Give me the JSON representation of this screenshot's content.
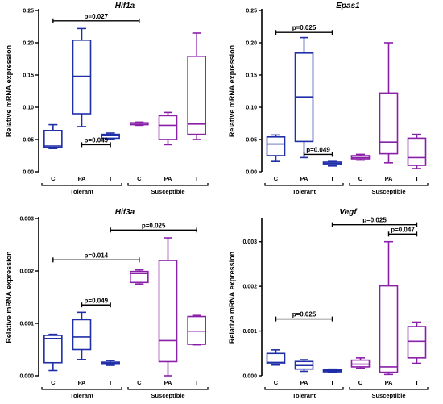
{
  "colors": {
    "tolerant": "#1f2fa8",
    "susceptible": "#8a1fa8",
    "axis": "#000000"
  },
  "chart_data": [
    {
      "type": "box",
      "title": "Hif1a",
      "ylabel": "Relative mRNA expression",
      "ylim": [
        0,
        0.25
      ],
      "yticks": [
        "0.00",
        "0.05",
        "0.10",
        "0.15",
        "0.20",
        "0.25"
      ],
      "ytick_values": [
        0,
        0.05,
        0.1,
        0.15,
        0.2,
        0.25
      ],
      "categories": [
        "C",
        "PA",
        "T",
        "C",
        "PA",
        "T"
      ],
      "groups": [
        "Tolerant",
        "Susceptible"
      ],
      "boxes": [
        {
          "group": "Tolerant",
          "category": "C",
          "min": 0.036,
          "q1": 0.038,
          "median": 0.04,
          "q3": 0.064,
          "max": 0.073
        },
        {
          "group": "Tolerant",
          "category": "PA",
          "min": 0.07,
          "q1": 0.09,
          "median": 0.148,
          "q3": 0.204,
          "max": 0.222
        },
        {
          "group": "Tolerant",
          "category": "T",
          "min": 0.051,
          "q1": 0.052,
          "median": 0.056,
          "q3": 0.058,
          "max": 0.06
        },
        {
          "group": "Susceptible",
          "category": "C",
          "min": 0.072,
          "q1": 0.073,
          "median": 0.075,
          "q3": 0.076,
          "max": 0.077
        },
        {
          "group": "Susceptible",
          "category": "PA",
          "min": 0.042,
          "q1": 0.05,
          "median": 0.072,
          "q3": 0.087,
          "max": 0.092
        },
        {
          "group": "Susceptible",
          "category": "T",
          "min": 0.05,
          "q1": 0.058,
          "median": 0.074,
          "q3": 0.179,
          "max": 0.215
        }
      ],
      "significance": [
        {
          "label": "p=0.027",
          "from": 0,
          "to": 3,
          "y": 0.234
        },
        {
          "label": "p=0.049",
          "from": 1,
          "to": 2,
          "y": 0.042
        }
      ]
    },
    {
      "type": "box",
      "title": "Epas1",
      "ylabel": "Relative mRNA expression",
      "ylim": [
        0,
        0.25
      ],
      "yticks": [
        "0.00",
        "0.05",
        "0.10",
        "0.15",
        "0.20",
        "0.25"
      ],
      "ytick_values": [
        0,
        0.05,
        0.1,
        0.15,
        0.2,
        0.25
      ],
      "categories": [
        "C",
        "PA",
        "T",
        "C",
        "PA",
        "T"
      ],
      "groups": [
        "Tolerant",
        "Susceptible"
      ],
      "boxes": [
        {
          "group": "Tolerant",
          "category": "C",
          "min": 0.016,
          "q1": 0.025,
          "median": 0.043,
          "q3": 0.054,
          "max": 0.057
        },
        {
          "group": "Tolerant",
          "category": "PA",
          "min": 0.022,
          "q1": 0.047,
          "median": 0.116,
          "q3": 0.184,
          "max": 0.208
        },
        {
          "group": "Tolerant",
          "category": "T",
          "min": 0.009,
          "q1": 0.011,
          "median": 0.013,
          "q3": 0.015,
          "max": 0.016
        },
        {
          "group": "Susceptible",
          "category": "C",
          "min": 0.018,
          "q1": 0.02,
          "median": 0.022,
          "q3": 0.025,
          "max": 0.027
        },
        {
          "group": "Susceptible",
          "category": "PA",
          "min": 0.014,
          "q1": 0.028,
          "median": 0.046,
          "q3": 0.122,
          "max": 0.2
        },
        {
          "group": "Susceptible",
          "category": "T",
          "min": 0.005,
          "q1": 0.01,
          "median": 0.022,
          "q3": 0.052,
          "max": 0.058
        }
      ],
      "significance": [
        {
          "label": "p=0.025",
          "from": 0,
          "to": 2,
          "y": 0.216
        },
        {
          "label": "p=0.049",
          "from": 1,
          "to": 2,
          "y": 0.027
        }
      ]
    },
    {
      "type": "box",
      "title": "Hif3a",
      "ylabel": "Relative mRNA expression",
      "ylim": [
        0,
        0.003
      ],
      "yticks": [
        "0.000",
        "0.001",
        "0.002",
        "0.003"
      ],
      "ytick_values": [
        0,
        0.001,
        0.002,
        0.003
      ],
      "categories": [
        "C",
        "PA",
        "T",
        "C",
        "PA",
        "T"
      ],
      "groups": [
        "Tolerant",
        "Susceptible"
      ],
      "boxes": [
        {
          "group": "Tolerant",
          "category": "C",
          "min": 0.0001,
          "q1": 0.00025,
          "median": 0.00071,
          "q3": 0.00077,
          "max": 0.00079
        },
        {
          "group": "Tolerant",
          "category": "PA",
          "min": 0.00031,
          "q1": 0.0005,
          "median": 0.00074,
          "q3": 0.00107,
          "max": 0.00121
        },
        {
          "group": "Tolerant",
          "category": "T",
          "min": 0.0002,
          "q1": 0.00022,
          "median": 0.00024,
          "q3": 0.00026,
          "max": 0.00029
        },
        {
          "group": "Susceptible",
          "category": "C",
          "min": 0.00175,
          "q1": 0.00178,
          "median": 0.00195,
          "q3": 0.00199,
          "max": 0.00202
        },
        {
          "group": "Susceptible",
          "category": "PA",
          "min": 0.0,
          "q1": 0.00027,
          "median": 0.00067,
          "q3": 0.0022,
          "max": 0.00263
        },
        {
          "group": "Susceptible",
          "category": "T",
          "min": 0.00059,
          "q1": 0.0006,
          "median": 0.00085,
          "q3": 0.00113,
          "max": 0.00115
        }
      ],
      "significance": [
        {
          "label": "p=0.014",
          "from": 0,
          "to": 3,
          "y": 0.00221
        },
        {
          "label": "p=0.049",
          "from": 1,
          "to": 2,
          "y": 0.00135
        },
        {
          "label": "p=0.025",
          "from": 2,
          "to": 5,
          "y": 0.00278
        }
      ]
    },
    {
      "type": "box",
      "title": "Vegf",
      "ylabel": "Relative mRNA expression",
      "ylim": [
        0,
        0.0035
      ],
      "yticks": [
        "0.000",
        "0.001",
        "0.002",
        "0.003"
      ],
      "ytick_values": [
        0,
        0.001,
        0.002,
        0.003
      ],
      "categories": [
        "C",
        "PA",
        "T",
        "C",
        "PA",
        "T"
      ],
      "groups": [
        "Tolerant",
        "Susceptible"
      ],
      "boxes": [
        {
          "group": "Tolerant",
          "category": "C",
          "min": 0.00024,
          "q1": 0.00027,
          "median": 0.0003,
          "q3": 0.0005,
          "max": 0.00058
        },
        {
          "group": "Tolerant",
          "category": "PA",
          "min": 0.0001,
          "q1": 0.00015,
          "median": 0.00023,
          "q3": 0.00032,
          "max": 0.00036
        },
        {
          "group": "Tolerant",
          "category": "T",
          "min": 8e-05,
          "q1": 9e-05,
          "median": 0.00011,
          "q3": 0.00013,
          "max": 0.00015
        },
        {
          "group": "Susceptible",
          "category": "C",
          "min": 0.00017,
          "q1": 0.0002,
          "median": 0.00026,
          "q3": 0.00035,
          "max": 0.0004
        },
        {
          "group": "Susceptible",
          "category": "PA",
          "min": 3e-05,
          "q1": 8e-05,
          "median": 0.0002,
          "q3": 0.00201,
          "max": 0.003
        },
        {
          "group": "Susceptible",
          "category": "T",
          "min": 0.00028,
          "q1": 0.0004,
          "median": 0.00077,
          "q3": 0.0011,
          "max": 0.0012
        }
      ],
      "significance": [
        {
          "label": "p=0.025",
          "from": 0,
          "to": 2,
          "y": 0.00127
        },
        {
          "label": "p=0.025",
          "from": 2,
          "to": 5,
          "y": 0.00338
        },
        {
          "label": "p=0.047",
          "from": 4,
          "to": 5,
          "y": 0.00317
        }
      ]
    }
  ]
}
